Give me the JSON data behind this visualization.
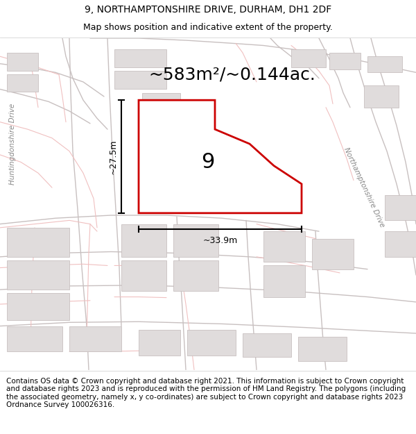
{
  "title_line1": "9, NORTHAMPTONSHIRE DRIVE, DURHAM, DH1 2DF",
  "title_line2": "Map shows position and indicative extent of the property.",
  "area_label": "~583m²/~0.144ac.",
  "plot_number": "9",
  "dim_width": "~33.9m",
  "dim_height": "~27.5m",
  "footer_text": "Contains OS data © Crown copyright and database right 2021. This information is subject to Crown copyright and database rights 2023 and is reproduced with the permission of HM Land Registry. The polygons (including the associated geometry, namely x, y co-ordinates) are subject to Crown copyright and database rights 2023 Ordnance Survey 100026316.",
  "map_bg": "#f7f4f4",
  "road_color": "#f0c0c0",
  "street_color": "#c8c0c0",
  "block_fill": "#e0dcdc",
  "block_edge": "#c8c0c0",
  "plot_fill": "#ffffff",
  "plot_edge": "#cc0000",
  "street_label_left": "Huntingdonshire Drive",
  "street_label_right": "Northamptonshire Drive",
  "title_fontsize": 10,
  "subtitle_fontsize": 9,
  "footer_fontsize": 7.5,
  "area_fontsize": 18,
  "number_fontsize": 22
}
